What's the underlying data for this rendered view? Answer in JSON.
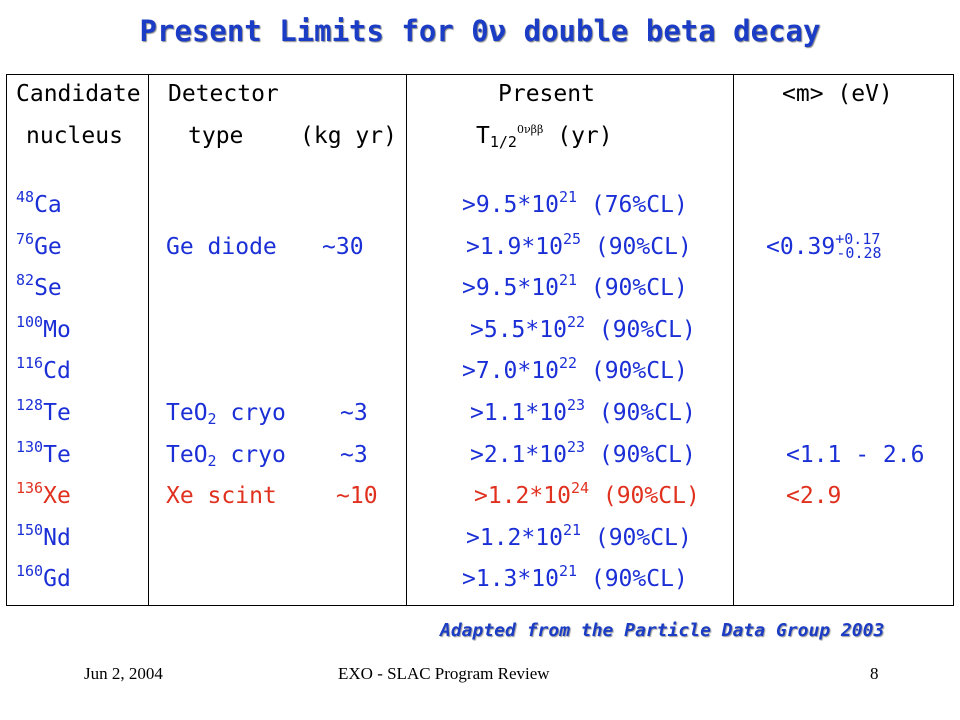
{
  "title": "Present Limits for 0ν double beta decay",
  "headers": {
    "candidate_line1": "Candidate",
    "candidate_line2": "nucleus",
    "detector_line1": "Detector",
    "detector_line2": "type",
    "exposure": "(kg yr)",
    "present_line1": "Present",
    "present_T": "T",
    "present_sub": "1/2",
    "present_sup": "0νββ",
    "present_unit": "(yr)",
    "mass": "<m> (eV)"
  },
  "rows": [
    {
      "mass_number": "48",
      "element": "Ca",
      "detector": "",
      "detector_sub": "",
      "detector_rest": "",
      "exposure": "",
      "limit_base": ">9.5*10",
      "limit_exp": "21",
      "limit_cl": "(76%CL)",
      "mass": "",
      "mass_sup": "",
      "mass_sub": "",
      "color": "blue"
    },
    {
      "mass_number": "76",
      "element": "Ge",
      "detector": "Ge diode",
      "detector_sub": "",
      "detector_rest": "",
      "exposure": "~30",
      "limit_base": ">1.9*10",
      "limit_exp": "25",
      "limit_cl": "(90%CL)",
      "mass": "<0.39",
      "mass_sup": "+0.17",
      "mass_sub": "-0.28",
      "color": "blue"
    },
    {
      "mass_number": "82",
      "element": "Se",
      "detector": "",
      "detector_sub": "",
      "detector_rest": "",
      "exposure": "",
      "limit_base": ">9.5*10",
      "limit_exp": "21",
      "limit_cl": "(90%CL)",
      "mass": "",
      "mass_sup": "",
      "mass_sub": "",
      "color": "blue"
    },
    {
      "mass_number": "100",
      "element": "Mo",
      "detector": "",
      "detector_sub": "",
      "detector_rest": "",
      "exposure": "",
      "limit_base": ">5.5*10",
      "limit_exp": "22",
      "limit_cl": "(90%CL)",
      "mass": "",
      "mass_sup": "",
      "mass_sub": "",
      "color": "blue"
    },
    {
      "mass_number": "116",
      "element": "Cd",
      "detector": "",
      "detector_sub": "",
      "detector_rest": "",
      "exposure": "",
      "limit_base": ">7.0*10",
      "limit_exp": "22",
      "limit_cl": "(90%CL)",
      "mass": "",
      "mass_sup": "",
      "mass_sub": "",
      "color": "blue"
    },
    {
      "mass_number": "128",
      "element": "Te",
      "detector": "TeO",
      "detector_sub": "2",
      "detector_rest": "cryo",
      "exposure": "~3",
      "limit_base": ">1.1*10",
      "limit_exp": "23",
      "limit_cl": "(90%CL)",
      "mass": "",
      "mass_sup": "",
      "mass_sub": "",
      "color": "blue"
    },
    {
      "mass_number": "130",
      "element": "Te",
      "detector": "TeO",
      "detector_sub": "2",
      "detector_rest": "cryo",
      "exposure": "~3",
      "limit_base": ">2.1*10",
      "limit_exp": "23",
      "limit_cl": "(90%CL)",
      "mass": "<1.1 - 2.6",
      "mass_sup": "",
      "mass_sub": "",
      "color": "blue"
    },
    {
      "mass_number": "136",
      "element": "Xe",
      "detector": "Xe scint",
      "detector_sub": "",
      "detector_rest": "",
      "exposure": "~10",
      "limit_base": ">1.2*10",
      "limit_exp": "24",
      "limit_cl": "(90%CL)",
      "mass": "<2.9",
      "mass_sup": "",
      "mass_sub": "",
      "color": "red"
    },
    {
      "mass_number": "150",
      "element": "Nd",
      "detector": "",
      "detector_sub": "",
      "detector_rest": "",
      "exposure": "",
      "limit_base": ">1.2*10",
      "limit_exp": "21",
      "limit_cl": "(90%CL)",
      "mass": "",
      "mass_sup": "",
      "mass_sub": "",
      "color": "blue"
    },
    {
      "mass_number": "160",
      "element": "Gd",
      "detector": "",
      "detector_sub": "",
      "detector_rest": "",
      "exposure": "",
      "limit_base": ">1.3*10",
      "limit_exp": "21",
      "limit_cl": "(90%CL)",
      "mass": "",
      "mass_sup": "",
      "mass_sub": "",
      "color": "blue"
    }
  ],
  "credit": "Adapted from the Particle Data Group 2003",
  "footer": {
    "date": "Jun 2, 2004",
    "center": "EXO - SLAC Program Review",
    "page": "8"
  },
  "colors": {
    "title": "#1b3cc4",
    "rows_default": "#1b2fd6",
    "xenon_row": "#e0301e"
  }
}
